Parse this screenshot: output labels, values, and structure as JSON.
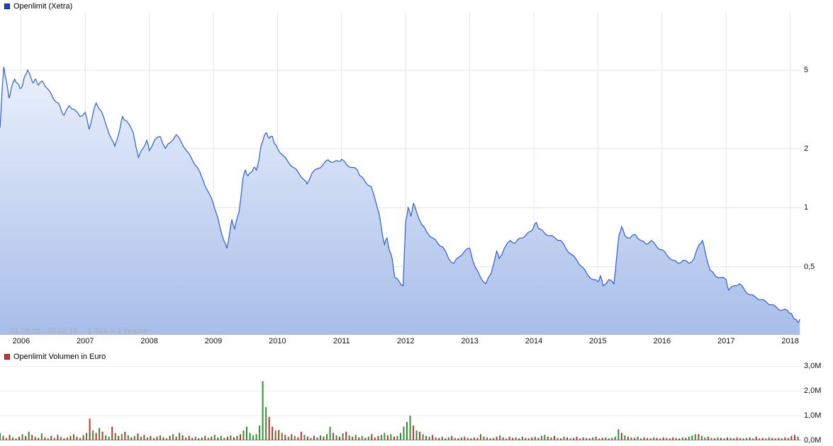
{
  "price_panel": {
    "legend_label": "Openlimit (Xetra)",
    "legend_marker_color": "#1a44c8",
    "range_label": "01.09.05 - 22.02.18",
    "tick_info": "1 Tick = 1 Woche"
  },
  "volume_panel": {
    "legend_label": "Openlimit Volumen in Euro",
    "legend_marker_color": "#cc3333"
  },
  "colors": {
    "grid": "#e4e4e4",
    "volume_grid": "#ededed",
    "volume_baseline": "#9a9a9a",
    "tick_text": "#111111",
    "footnote_text": "#adadad"
  },
  "chart_data": [
    {
      "type": "area",
      "title": "Openlimit (Xetra)",
      "x_unit": "year (weekly ticks)",
      "x_range": [
        2005.67,
        2018.17
      ],
      "y_scale": "log",
      "ylim": [
        0.225,
        9.8
      ],
      "y_ticks": [
        5,
        2,
        1,
        0.5
      ],
      "y_tick_labels": [
        "5",
        "2",
        "1",
        "0,5"
      ],
      "x_ticks": [
        2006,
        2007,
        2008,
        2009,
        2010,
        2011,
        2012,
        2013,
        2014,
        2015,
        2016,
        2017,
        2018
      ],
      "x_tick_labels": [
        "2006",
        "2007",
        "2008",
        "2009",
        "2010",
        "2011",
        "2012",
        "2013",
        "2014",
        "2015",
        "2016",
        "2017",
        "2018"
      ],
      "line_color": "#2a5ed0",
      "fill_top": "#eaf1fc",
      "fill_bottom": "#a8bde9",
      "points": [
        [
          2005.67,
          2.55
        ],
        [
          2005.7,
          3.8
        ],
        [
          2005.73,
          5.2
        ],
        [
          2005.77,
          4.4
        ],
        [
          2005.81,
          3.6
        ],
        [
          2005.85,
          4.1
        ],
        [
          2005.9,
          4.5
        ],
        [
          2005.94,
          4.3
        ],
        [
          2005.98,
          4.05
        ],
        [
          2006.02,
          4.15
        ],
        [
          2006.06,
          4.7
        ],
        [
          2006.1,
          5.0
        ],
        [
          2006.15,
          4.6
        ],
        [
          2006.19,
          4.3
        ],
        [
          2006.23,
          4.5
        ],
        [
          2006.27,
          4.2
        ],
        [
          2006.33,
          4.4
        ],
        [
          2006.42,
          4.0
        ],
        [
          2006.5,
          3.6
        ],
        [
          2006.58,
          3.4
        ],
        [
          2006.63,
          3.1
        ],
        [
          2006.67,
          2.95
        ],
        [
          2006.75,
          3.3
        ],
        [
          2006.83,
          3.15
        ],
        [
          2006.92,
          2.9
        ],
        [
          2007.0,
          3.05
        ],
        [
          2007.06,
          2.5
        ],
        [
          2007.12,
          3.0
        ],
        [
          2007.17,
          3.4
        ],
        [
          2007.25,
          3.1
        ],
        [
          2007.33,
          2.6
        ],
        [
          2007.42,
          2.2
        ],
        [
          2007.46,
          2.05
        ],
        [
          2007.54,
          2.5
        ],
        [
          2007.58,
          2.9
        ],
        [
          2007.65,
          2.75
        ],
        [
          2007.75,
          2.4
        ],
        [
          2007.83,
          1.8
        ],
        [
          2007.9,
          2.0
        ],
        [
          2007.96,
          2.2
        ],
        [
          2008.0,
          1.95
        ],
        [
          2008.08,
          2.2
        ],
        [
          2008.17,
          2.3
        ],
        [
          2008.25,
          2.0
        ],
        [
          2008.33,
          2.15
        ],
        [
          2008.42,
          2.35
        ],
        [
          2008.5,
          2.15
        ],
        [
          2008.58,
          1.95
        ],
        [
          2008.67,
          1.75
        ],
        [
          2008.75,
          1.6
        ],
        [
          2008.83,
          1.4
        ],
        [
          2008.92,
          1.2
        ],
        [
          2009.0,
          1.05
        ],
        [
          2009.04,
          0.95
        ],
        [
          2009.1,
          0.8
        ],
        [
          2009.17,
          0.67
        ],
        [
          2009.21,
          0.62
        ],
        [
          2009.25,
          0.73
        ],
        [
          2009.29,
          0.87
        ],
        [
          2009.33,
          0.78
        ],
        [
          2009.4,
          0.95
        ],
        [
          2009.46,
          1.4
        ],
        [
          2009.5,
          1.55
        ],
        [
          2009.54,
          1.45
        ],
        [
          2009.58,
          1.5
        ],
        [
          2009.63,
          1.6
        ],
        [
          2009.67,
          1.55
        ],
        [
          2009.71,
          1.75
        ],
        [
          2009.75,
          2.1
        ],
        [
          2009.79,
          2.3
        ],
        [
          2009.83,
          2.4
        ],
        [
          2009.87,
          2.25
        ],
        [
          2009.92,
          2.3
        ],
        [
          2009.96,
          2.1
        ],
        [
          2010.0,
          2.0
        ],
        [
          2010.08,
          1.85
        ],
        [
          2010.17,
          1.7
        ],
        [
          2010.25,
          1.6
        ],
        [
          2010.33,
          1.5
        ],
        [
          2010.42,
          1.38
        ],
        [
          2010.46,
          1.32
        ],
        [
          2010.54,
          1.5
        ],
        [
          2010.63,
          1.58
        ],
        [
          2010.71,
          1.65
        ],
        [
          2010.79,
          1.75
        ],
        [
          2010.87,
          1.7
        ],
        [
          2010.96,
          1.72
        ],
        [
          2011.0,
          1.76
        ],
        [
          2011.08,
          1.65
        ],
        [
          2011.17,
          1.6
        ],
        [
          2011.25,
          1.55
        ],
        [
          2011.29,
          1.45
        ],
        [
          2011.37,
          1.35
        ],
        [
          2011.46,
          1.28
        ],
        [
          2011.54,
          1.05
        ],
        [
          2011.58,
          0.95
        ],
        [
          2011.63,
          0.75
        ],
        [
          2011.67,
          0.65
        ],
        [
          2011.71,
          0.7
        ],
        [
          2011.75,
          0.6
        ],
        [
          2011.79,
          0.55
        ],
        [
          2011.83,
          0.44
        ],
        [
          2011.9,
          0.42
        ],
        [
          2011.96,
          0.4
        ],
        [
          2012.0,
          0.85
        ],
        [
          2012.04,
          1.0
        ],
        [
          2012.08,
          0.9
        ],
        [
          2012.12,
          1.05
        ],
        [
          2012.17,
          0.95
        ],
        [
          2012.25,
          0.82
        ],
        [
          2012.33,
          0.75
        ],
        [
          2012.42,
          0.7
        ],
        [
          2012.5,
          0.66
        ],
        [
          2012.58,
          0.63
        ],
        [
          2012.67,
          0.55
        ],
        [
          2012.75,
          0.52
        ],
        [
          2012.83,
          0.56
        ],
        [
          2012.92,
          0.6
        ],
        [
          2013.0,
          0.62
        ],
        [
          2013.08,
          0.5
        ],
        [
          2013.17,
          0.44
        ],
        [
          2013.25,
          0.41
        ],
        [
          2013.33,
          0.46
        ],
        [
          2013.42,
          0.6
        ],
        [
          2013.46,
          0.55
        ],
        [
          2013.54,
          0.62
        ],
        [
          2013.63,
          0.68
        ],
        [
          2013.71,
          0.66
        ],
        [
          2013.79,
          0.7
        ],
        [
          2013.87,
          0.72
        ],
        [
          2013.96,
          0.76
        ],
        [
          2014.0,
          0.8
        ],
        [
          2014.04,
          0.84
        ],
        [
          2014.08,
          0.78
        ],
        [
          2014.17,
          0.74
        ],
        [
          2014.25,
          0.72
        ],
        [
          2014.33,
          0.7
        ],
        [
          2014.42,
          0.68
        ],
        [
          2014.5,
          0.62
        ],
        [
          2014.58,
          0.58
        ],
        [
          2014.67,
          0.54
        ],
        [
          2014.75,
          0.5
        ],
        [
          2014.83,
          0.46
        ],
        [
          2014.92,
          0.43
        ],
        [
          2015.0,
          0.42
        ],
        [
          2015.04,
          0.45
        ],
        [
          2015.08,
          0.4
        ],
        [
          2015.17,
          0.43
        ],
        [
          2015.25,
          0.41
        ],
        [
          2015.29,
          0.55
        ],
        [
          2015.33,
          0.73
        ],
        [
          2015.37,
          0.8
        ],
        [
          2015.42,
          0.72
        ],
        [
          2015.5,
          0.7
        ],
        [
          2015.58,
          0.73
        ],
        [
          2015.67,
          0.68
        ],
        [
          2015.75,
          0.65
        ],
        [
          2015.83,
          0.68
        ],
        [
          2015.92,
          0.63
        ],
        [
          2016.0,
          0.61
        ],
        [
          2016.08,
          0.57
        ],
        [
          2016.17,
          0.54
        ],
        [
          2016.25,
          0.52
        ],
        [
          2016.33,
          0.54
        ],
        [
          2016.42,
          0.52
        ],
        [
          2016.5,
          0.55
        ],
        [
          2016.58,
          0.65
        ],
        [
          2016.63,
          0.68
        ],
        [
          2016.67,
          0.6
        ],
        [
          2016.75,
          0.48
        ],
        [
          2016.83,
          0.45
        ],
        [
          2016.92,
          0.44
        ],
        [
          2017.0,
          0.43
        ],
        [
          2017.04,
          0.38
        ],
        [
          2017.12,
          0.4
        ],
        [
          2017.21,
          0.41
        ],
        [
          2017.29,
          0.38
        ],
        [
          2017.37,
          0.36
        ],
        [
          2017.46,
          0.35
        ],
        [
          2017.54,
          0.34
        ],
        [
          2017.63,
          0.33
        ],
        [
          2017.71,
          0.32
        ],
        [
          2017.79,
          0.31
        ],
        [
          2017.87,
          0.3
        ],
        [
          2017.96,
          0.3
        ],
        [
          2018.0,
          0.29
        ],
        [
          2018.04,
          0.28
        ],
        [
          2018.08,
          0.27
        ],
        [
          2018.12,
          0.26
        ],
        [
          2018.15,
          0.27
        ]
      ]
    },
    {
      "type": "bar",
      "title": "Openlimit Volumen in Euro",
      "unit": "EUR millions",
      "ylim": [
        0,
        3.1
      ],
      "y_ticks": [
        0,
        1,
        2,
        3
      ],
      "y_tick_labels": [
        "0,0M",
        "1,0M",
        "2,0M",
        "3,0M"
      ],
      "bar_colors": {
        "g": "#2f8f2f",
        "r": "#c03030"
      },
      "x_start": 2005.67,
      "x_step": 0.05,
      "value_rows": [
        [
          0.3,
          0.18,
          0.1,
          0.22,
          0.12,
          0.08,
          0.15,
          0.25,
          0.18,
          0.35
        ],
        [
          0.22,
          0.15,
          0.1,
          0.28,
          0.12,
          0.08,
          0.18,
          0.1,
          0.22,
          0.14
        ],
        [
          0.08,
          0.12,
          0.18,
          0.25,
          0.15,
          0.1,
          0.2,
          0.3,
          0.88,
          0.4
        ],
        [
          0.3,
          0.5,
          0.35,
          0.2,
          0.15,
          0.55,
          0.3,
          0.18,
          0.25,
          0.35
        ],
        [
          0.2,
          0.12,
          0.18,
          0.28,
          0.15,
          0.22,
          0.12,
          0.18,
          0.1,
          0.15
        ],
        [
          0.2,
          0.12,
          0.08,
          0.18,
          0.25,
          0.15,
          0.3,
          0.2,
          0.12,
          0.18
        ],
        [
          0.1,
          0.15,
          0.08,
          0.12,
          0.18,
          0.1,
          0.15,
          0.22,
          0.12,
          0.18
        ],
        [
          0.1,
          0.15,
          0.2,
          0.12,
          0.18,
          0.25,
          0.4,
          0.55,
          0.3,
          0.2
        ],
        [
          0.25,
          0.6,
          2.4,
          1.35,
          0.95,
          0.55,
          0.4,
          0.42,
          0.3,
          0.22
        ],
        [
          0.15,
          0.25,
          0.18,
          0.12,
          0.35,
          0.22,
          0.15,
          0.1,
          0.18,
          0.12
        ],
        [
          0.2,
          0.15,
          0.25,
          0.55,
          0.3,
          0.2,
          0.15,
          0.28,
          0.35,
          0.2
        ],
        [
          0.15,
          0.22,
          0.12,
          0.18,
          0.1,
          0.15,
          0.25,
          0.12,
          0.18,
          0.22
        ],
        [
          0.3,
          0.2,
          0.25,
          0.15,
          0.18,
          0.3,
          0.55,
          0.75,
          1.0,
          0.6
        ],
        [
          0.4,
          0.35,
          0.25,
          0.18,
          0.15,
          0.22,
          0.12,
          0.1,
          0.15,
          0.08
        ],
        [
          0.12,
          0.18,
          0.1,
          0.08,
          0.12,
          0.15,
          0.1,
          0.08,
          0.12,
          0.1
        ],
        [
          0.25,
          0.15,
          0.12,
          0.08,
          0.1,
          0.15,
          0.2,
          0.12,
          0.08,
          0.15
        ],
        [
          0.1,
          0.12,
          0.08,
          0.15,
          0.1,
          0.08,
          0.12,
          0.15,
          0.1,
          0.18
        ],
        [
          0.22,
          0.15,
          0.12,
          0.18,
          0.1,
          0.08,
          0.15,
          0.12,
          0.08,
          0.1
        ],
        [
          0.15,
          0.08,
          0.12,
          0.1,
          0.08,
          0.12,
          0.15,
          0.08,
          0.1,
          0.12
        ],
        [
          0.08,
          0.1,
          0.15,
          0.45,
          0.3,
          0.2,
          0.15,
          0.12,
          0.1,
          0.15
        ],
        [
          0.08,
          0.12,
          0.1,
          0.08,
          0.12,
          0.1,
          0.08,
          0.12,
          0.1,
          0.08
        ],
        [
          0.12,
          0.1,
          0.08,
          0.12,
          0.1,
          0.15,
          0.2,
          0.25,
          0.25,
          0.18
        ],
        [
          0.12,
          0.15,
          0.1,
          0.08,
          0.12,
          0.1,
          0.08,
          0.12,
          0.1,
          0.08
        ],
        [
          0.12,
          0.1,
          0.08,
          0.1,
          0.12,
          0.08,
          0.15,
          0.08,
          0.1,
          0.08
        ],
        [
          0.12,
          0.1,
          0.08,
          0.1,
          0.08,
          0.12,
          0.1,
          0.18,
          0.22,
          0.15
        ]
      ],
      "color_rows": [
        "grgrggrgrg",
        "rgrgrgrgrg",
        "rgrgrgrgrg",
        "rgrggrgrgr",
        "grgrgrgrgr",
        "grgrgrgrgr",
        "rgrgrgrgrg",
        "grgrgrgggg",
        "ggggrrgrgr",
        "grgrrgrgrg",
        "grggrgrgrg",
        "rgrgrgrgrg",
        "grgrgggggr",
        "grgrgrgrgr",
        "grgrgrgrgr",
        "grgrgrgrgr",
        "rgrgrgrgrg",
        "grgrgrgrgr",
        "rgrgrgrgrg",
        "grggrgrgrg",
        "grgrgrgrgr",
        "rgrgrgggrg",
        "grgrgrgrgr",
        "rgrgrgrgrg",
        "grgrgrgrrg"
      ]
    }
  ]
}
